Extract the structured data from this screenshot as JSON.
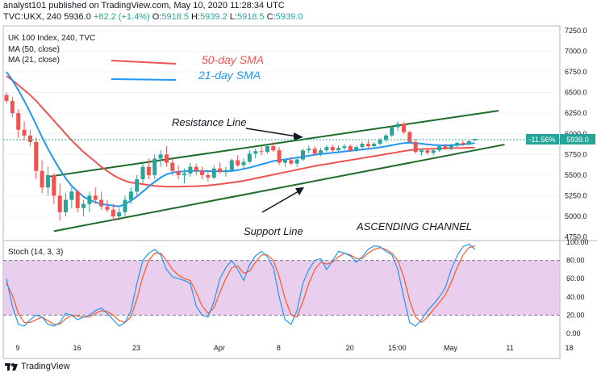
{
  "header": {
    "line1": "analyst101 published on TradingView.com, May 10, 2020 11:28:34 UTC",
    "symbol": "TVC:UKX, 240",
    "last": "5936.0",
    "change": "+82.2 (+1.4%)",
    "open_lbl": "O:",
    "open": "5918.5",
    "high_lbl": "H:",
    "high": "5939.2",
    "low_lbl": "L:",
    "low": "5918.5",
    "close_lbl": "C:",
    "close": "5939.0"
  },
  "legend": {
    "title": "UK 100 Index, 240, TVC",
    "ma50": "MA (50, close)",
    "ma21": "MA (21, close)"
  },
  "annotations": {
    "sma50": "50-day SMA",
    "sma21": "21-day SMA",
    "resistance": "Resistance Line",
    "support": "Support Line",
    "channel": "ASCENDING CHANNEL"
  },
  "price_tag": {
    "pct": "-11.56%",
    "value": "5939.0"
  },
  "stoch": {
    "title": "Stoch (14, 3, 3)"
  },
  "brand": "TradingView",
  "colors": {
    "up": "#26a69a",
    "down": "#ef5350",
    "ma50": "#ef5350",
    "ma21": "#2196f3",
    "channel": "#1f6b2a",
    "stoch_k": "#2196f3",
    "stoch_d": "#ff5722",
    "stoch_band": "#e1bee7"
  },
  "chart_data": {
    "type": "line",
    "main_yticks": [
      "7250.0",
      "7000.0",
      "6750.0",
      "6500.0",
      "6250.0",
      "6000.0",
      "5750.0",
      "5500.0",
      "5250.0",
      "5000.0",
      "4750.0"
    ],
    "main_ylim": [
      4750,
      7250
    ],
    "x_ticks": [
      {
        "label": "9",
        "i": 0
      },
      {
        "label": "16",
        "i": 10
      },
      {
        "label": "23",
        "i": 20
      },
      {
        "label": "Apr",
        "i": 34
      },
      {
        "label": "8",
        "i": 44
      },
      {
        "label": "20",
        "i": 56
      },
      {
        "label": "15:00",
        "i": 64
      },
      {
        "label": "May",
        "i": 73
      },
      {
        "label": "11",
        "i": 83
      },
      {
        "label": "18",
        "i": 93
      }
    ],
    "candles": [
      [
        6470,
        6500,
        6370,
        6400
      ],
      [
        6400,
        6450,
        6200,
        6250
      ],
      [
        6250,
        6300,
        5950,
        6050
      ],
      [
        6050,
        6150,
        5920,
        5980
      ],
      [
        5980,
        6050,
        5850,
        5900
      ],
      [
        5900,
        5950,
        5450,
        5550
      ],
      [
        5550,
        5680,
        5280,
        5350
      ],
      [
        5350,
        5600,
        5250,
        5500
      ],
      [
        5500,
        5520,
        5150,
        5250
      ],
      [
        5250,
        5400,
        4950,
        5050
      ],
      [
        5050,
        5280,
        5000,
        5200
      ],
      [
        5200,
        5350,
        5100,
        5300
      ],
      [
        5300,
        5320,
        5050,
        5100
      ],
      [
        5100,
        5200,
        5000,
        5150
      ],
      [
        5150,
        5300,
        5050,
        5250
      ],
      [
        5250,
        5350,
        5150,
        5200
      ],
      [
        5200,
        5300,
        5080,
        5120
      ],
      [
        5120,
        5200,
        5050,
        5080
      ],
      [
        5080,
        5150,
        4950,
        5000
      ],
      [
        5000,
        5100,
        4950,
        5050
      ],
      [
        5050,
        5250,
        5000,
        5200
      ],
      [
        5200,
        5350,
        5150,
        5300
      ],
      [
        5300,
        5500,
        5250,
        5450
      ],
      [
        5450,
        5650,
        5400,
        5600
      ],
      [
        5600,
        5700,
        5450,
        5500
      ],
      [
        5500,
        5750,
        5450,
        5700
      ],
      [
        5700,
        5800,
        5600,
        5750
      ],
      [
        5750,
        5850,
        5600,
        5650
      ],
      [
        5650,
        5700,
        5500,
        5550
      ],
      [
        5550,
        5620,
        5450,
        5500
      ],
      [
        5500,
        5580,
        5400,
        5520
      ],
      [
        5520,
        5650,
        5480,
        5600
      ],
      [
        5600,
        5640,
        5500,
        5550
      ],
      [
        5550,
        5600,
        5450,
        5500
      ],
      [
        5500,
        5560,
        5420,
        5470
      ],
      [
        5470,
        5620,
        5450,
        5580
      ],
      [
        5580,
        5650,
        5520,
        5540
      ],
      [
        5540,
        5600,
        5480,
        5560
      ],
      [
        5560,
        5700,
        5540,
        5680
      ],
      [
        5680,
        5740,
        5600,
        5620
      ],
      [
        5620,
        5700,
        5580,
        5660
      ],
      [
        5660,
        5800,
        5640,
        5760
      ],
      [
        5760,
        5820,
        5700,
        5790
      ],
      [
        5790,
        5850,
        5740,
        5780
      ],
      [
        5780,
        5880,
        5760,
        5850
      ],
      [
        5850,
        5900,
        5780,
        5800
      ],
      [
        5800,
        5840,
        5620,
        5650
      ],
      [
        5650,
        5700,
        5600,
        5680
      ],
      [
        5680,
        5720,
        5620,
        5640
      ],
      [
        5640,
        5700,
        5600,
        5690
      ],
      [
        5690,
        5820,
        5670,
        5800
      ],
      [
        5800,
        5860,
        5760,
        5820
      ],
      [
        5820,
        5850,
        5740,
        5760
      ],
      [
        5760,
        5830,
        5730,
        5800
      ],
      [
        5800,
        5860,
        5780,
        5840
      ],
      [
        5840,
        5870,
        5780,
        5800
      ],
      [
        5800,
        5860,
        5760,
        5830
      ],
      [
        5830,
        5880,
        5800,
        5850
      ],
      [
        5850,
        5870,
        5780,
        5800
      ],
      [
        5800,
        5860,
        5780,
        5840
      ],
      [
        5840,
        5900,
        5820,
        5880
      ],
      [
        5880,
        5920,
        5820,
        5850
      ],
      [
        5850,
        5900,
        5830,
        5880
      ],
      [
        5880,
        5950,
        5860,
        5930
      ],
      [
        5930,
        6000,
        5900,
        5980
      ],
      [
        5980,
        6100,
        5960,
        6080
      ],
      [
        6080,
        6150,
        6040,
        6120
      ],
      [
        6120,
        6140,
        6000,
        6020
      ],
      [
        6020,
        6040,
        5880,
        5900
      ],
      [
        5900,
        5940,
        5760,
        5780
      ],
      [
        5780,
        5820,
        5740,
        5800
      ],
      [
        5800,
        5830,
        5750,
        5770
      ],
      [
        5770,
        5820,
        5740,
        5800
      ],
      [
        5800,
        5860,
        5780,
        5850
      ],
      [
        5850,
        5880,
        5800,
        5820
      ],
      [
        5820,
        5880,
        5800,
        5860
      ],
      [
        5860,
        5900,
        5840,
        5890
      ],
      [
        5890,
        5920,
        5850,
        5870
      ],
      [
        5870,
        5920,
        5860,
        5910
      ],
      [
        5918.5,
        5939.2,
        5918.5,
        5939.0
      ]
    ],
    "series": [
      {
        "name": "MA (50, close)",
        "values": [
          6700,
          6650,
          6590,
          6530,
          6470,
          6400,
          6320,
          6240,
          6160,
          6080,
          6000,
          5920,
          5850,
          5780,
          5720,
          5660,
          5600,
          5550,
          5500,
          5460,
          5430,
          5410,
          5400,
          5390,
          5380,
          5370,
          5365,
          5360,
          5360,
          5360,
          5362,
          5364,
          5366,
          5370,
          5375,
          5382,
          5390,
          5400,
          5410,
          5420,
          5430,
          5445,
          5460,
          5475,
          5490,
          5505,
          5520,
          5535,
          5550,
          5565,
          5580,
          5595,
          5610,
          5622,
          5634,
          5646,
          5658,
          5670,
          5682,
          5694,
          5706,
          5718,
          5730,
          5742,
          5754,
          5766,
          5778,
          5790,
          5802,
          5810,
          5815,
          5818,
          5820,
          5822,
          5824,
          5826,
          5828,
          5830,
          5832,
          5834
        ]
      },
      {
        "name": "MA (21, close)",
        "values": [
          6750,
          6650,
          6530,
          6400,
          6260,
          6110,
          5960,
          5820,
          5690,
          5570,
          5460,
          5370,
          5300,
          5240,
          5200,
          5170,
          5150,
          5140,
          5130,
          5120,
          5150,
          5190,
          5240,
          5300,
          5360,
          5420,
          5470,
          5510,
          5530,
          5540,
          5545,
          5550,
          5550,
          5550,
          5548,
          5546,
          5545,
          5546,
          5550,
          5560,
          5575,
          5590,
          5610,
          5630,
          5650,
          5670,
          5680,
          5690,
          5700,
          5712,
          5722,
          5735,
          5745,
          5755,
          5762,
          5770,
          5778,
          5786,
          5794,
          5802,
          5810,
          5818,
          5826,
          5836,
          5848,
          5862,
          5876,
          5888,
          5892,
          5888,
          5880,
          5872,
          5866,
          5862,
          5860,
          5862,
          5866,
          5872,
          5880,
          5888
        ]
      }
    ],
    "stoch_yticks": [
      "100.00",
      "80.00",
      "60.00",
      "40.00",
      "20.00",
      "0.00"
    ],
    "stoch_ylim": [
      0,
      100
    ],
    "stoch_band": [
      20,
      80
    ],
    "stoch_k": [
      60,
      30,
      10,
      8,
      15,
      20,
      18,
      10,
      8,
      12,
      22,
      20,
      15,
      18,
      20,
      25,
      28,
      22,
      15,
      8,
      12,
      25,
      55,
      80,
      88,
      92,
      86,
      70,
      62,
      60,
      58,
      55,
      30,
      20,
      18,
      35,
      60,
      72,
      80,
      70,
      58,
      75,
      85,
      90,
      84,
      72,
      40,
      15,
      10,
      25,
      55,
      70,
      80,
      82,
      70,
      80,
      90,
      88,
      85,
      78,
      84,
      92,
      96,
      95,
      90,
      86,
      70,
      40,
      12,
      8,
      15,
      25,
      32,
      40,
      50,
      70,
      85,
      95,
      98,
      92
    ],
    "stoch_d": [
      55,
      42,
      22,
      12,
      12,
      15,
      18,
      14,
      10,
      10,
      16,
      20,
      19,
      18,
      18,
      22,
      25,
      24,
      20,
      14,
      12,
      18,
      38,
      62,
      80,
      88,
      88,
      80,
      70,
      64,
      60,
      58,
      45,
      30,
      22,
      28,
      45,
      60,
      72,
      74,
      66,
      68,
      78,
      86,
      86,
      80,
      62,
      38,
      20,
      18,
      35,
      55,
      70,
      78,
      76,
      78,
      84,
      88,
      86,
      82,
      82,
      88,
      92,
      94,
      92,
      88,
      80,
      62,
      36,
      18,
      12,
      18,
      26,
      34,
      42,
      56,
      72,
      86,
      94,
      96
    ]
  }
}
